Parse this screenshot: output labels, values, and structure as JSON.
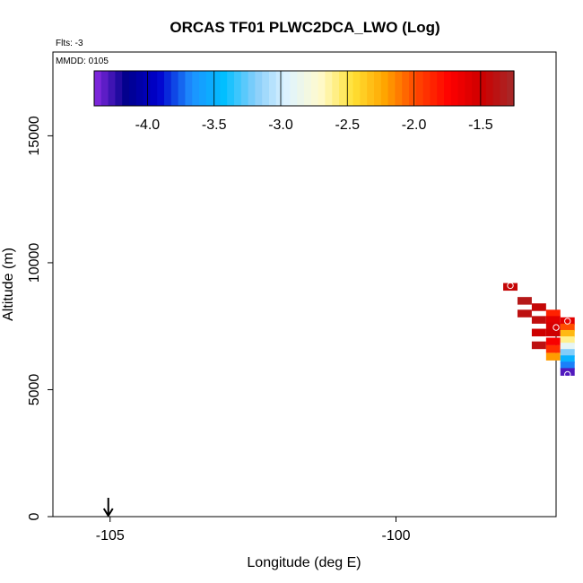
{
  "chart_data": {
    "type": "heatmap",
    "title": "ORCAS TF01 PLWC2DCA_LWO (Log)",
    "flights_label": "Flts: -3",
    "date_label": "MMDD: 0105",
    "xlabel": "Longitude (deg E)",
    "ylabel": "Altitude (m)",
    "xlim": [
      -106.0,
      -97.2
    ],
    "ylim": [
      0,
      18300
    ],
    "x_ticks": [
      -105,
      -100
    ],
    "x_tick_labels": [
      "-105",
      "-100"
    ],
    "y_ticks": [
      0,
      5000,
      10000,
      15000
    ],
    "y_tick_labels": [
      "0",
      "5000",
      "10000",
      "15000"
    ],
    "colorbar": {
      "range": [
        -4.4,
        -1.25
      ],
      "ticks": [
        -4.0,
        -3.5,
        -3.0,
        -2.5,
        -2.0,
        -1.5
      ],
      "tick_labels": [
        "-4.0",
        "-3.5",
        "-3.0",
        "-2.5",
        "-2.0",
        "-1.5"
      ],
      "colors": [
        "#8a2be2",
        "#00008b",
        "#0000cd",
        "#1e90ff",
        "#00bfff",
        "#87cefa",
        "#e0f4ff",
        "#fffacd",
        "#ffe135",
        "#ffa500",
        "#ff4500",
        "#ff0000",
        "#cc0000",
        "#a52a2a"
      ]
    },
    "cells": [
      {
        "lon": -98.0,
        "alt": 9050,
        "value": -1.45
      },
      {
        "lon": -97.75,
        "alt": 8500,
        "value": -1.35
      },
      {
        "lon": -97.75,
        "alt": 8000,
        "value": -1.4
      },
      {
        "lon": -97.5,
        "alt": 8250,
        "value": -1.45
      },
      {
        "lon": -97.5,
        "alt": 7750,
        "value": -1.42
      },
      {
        "lon": -97.5,
        "alt": 7250,
        "value": -1.5
      },
      {
        "lon": -97.5,
        "alt": 6750,
        "value": -1.4
      },
      {
        "lon": -97.25,
        "alt": 8000,
        "value": -1.85
      },
      {
        "lon": -97.25,
        "alt": 7750,
        "value": -1.6
      },
      {
        "lon": -97.25,
        "alt": 7500,
        "value": -1.55
      },
      {
        "lon": -97.25,
        "alt": 7250,
        "value": -1.5
      },
      {
        "lon": -97.25,
        "alt": 6900,
        "value": -1.7
      },
      {
        "lon": -97.25,
        "alt": 6600,
        "value": -1.9
      },
      {
        "lon": -97.25,
        "alt": 6300,
        "value": -2.2
      },
      {
        "lon": -97.0,
        "alt": 7700,
        "value": -1.6
      },
      {
        "lon": -97.0,
        "alt": 7450,
        "value": -2.0
      },
      {
        "lon": -97.0,
        "alt": 7200,
        "value": -2.3
      },
      {
        "lon": -97.0,
        "alt": 6950,
        "value": -2.6
      },
      {
        "lon": -97.0,
        "alt": 6700,
        "value": -2.9
      },
      {
        "lon": -97.0,
        "alt": 6450,
        "value": -3.2
      },
      {
        "lon": -97.0,
        "alt": 6200,
        "value": -3.5
      },
      {
        "lon": -97.0,
        "alt": 5950,
        "value": -3.7
      },
      {
        "lon": -97.0,
        "alt": 5700,
        "value": -4.3
      }
    ],
    "markers": [
      {
        "lon": -98.0,
        "alt": 9100
      },
      {
        "lon": -97.0,
        "alt": 7700
      },
      {
        "lon": -97.2,
        "alt": 7450
      },
      {
        "lon": -97.7,
        "alt": 6650
      },
      {
        "lon": -97.0,
        "alt": 5600
      }
    ],
    "arrow_lon": -105.0,
    "grid": false
  }
}
